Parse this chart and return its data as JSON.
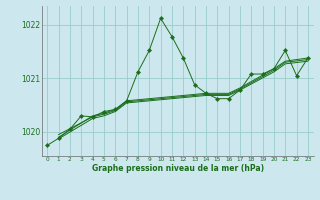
{
  "title": "Graphe pression niveau de la mer (hPa)",
  "bg_color": "#cce8ee",
  "grid_color": "#99cccc",
  "line_color": "#1a6e1a",
  "xlim": [
    -0.5,
    23.5
  ],
  "ylim": [
    1019.55,
    1022.35
  ],
  "yticks": [
    1020,
    1021,
    1022
  ],
  "xticks": [
    0,
    1,
    2,
    3,
    4,
    5,
    6,
    7,
    8,
    9,
    10,
    11,
    12,
    13,
    14,
    15,
    16,
    17,
    18,
    19,
    20,
    21,
    22,
    23
  ],
  "main_series_x": [
    0,
    1,
    2,
    3,
    4,
    5,
    6,
    7,
    8,
    9,
    10,
    11,
    12,
    13,
    14,
    15,
    16,
    17,
    18,
    19,
    20,
    21,
    22,
    23
  ],
  "main_series_y": [
    1019.75,
    1019.88,
    1020.05,
    1020.3,
    1020.28,
    1020.38,
    1020.42,
    1020.58,
    1021.12,
    1021.52,
    1022.12,
    1021.78,
    1021.38,
    1020.88,
    1020.72,
    1020.62,
    1020.62,
    1020.78,
    1021.08,
    1021.08,
    1021.18,
    1021.52,
    1021.05,
    1021.38
  ],
  "trend1_x": [
    1,
    4,
    5,
    6,
    7,
    14,
    15,
    16,
    17,
    20,
    21,
    23
  ],
  "trend1_y": [
    1019.9,
    1020.3,
    1020.35,
    1020.42,
    1020.58,
    1020.72,
    1020.72,
    1020.72,
    1020.82,
    1021.18,
    1021.32,
    1021.38
  ],
  "trend2_x": [
    1,
    4,
    5,
    6,
    7,
    14,
    15,
    16,
    17,
    20,
    21,
    23
  ],
  "trend2_y": [
    1019.95,
    1020.28,
    1020.33,
    1020.4,
    1020.56,
    1020.7,
    1020.7,
    1020.7,
    1020.8,
    1021.15,
    1021.3,
    1021.35
  ],
  "trend3_x": [
    1,
    4,
    5,
    6,
    7,
    14,
    15,
    16,
    17,
    20,
    21,
    23
  ],
  "trend3_y": [
    1019.87,
    1020.25,
    1020.3,
    1020.38,
    1020.54,
    1020.68,
    1020.68,
    1020.68,
    1020.78,
    1021.12,
    1021.27,
    1021.32
  ]
}
